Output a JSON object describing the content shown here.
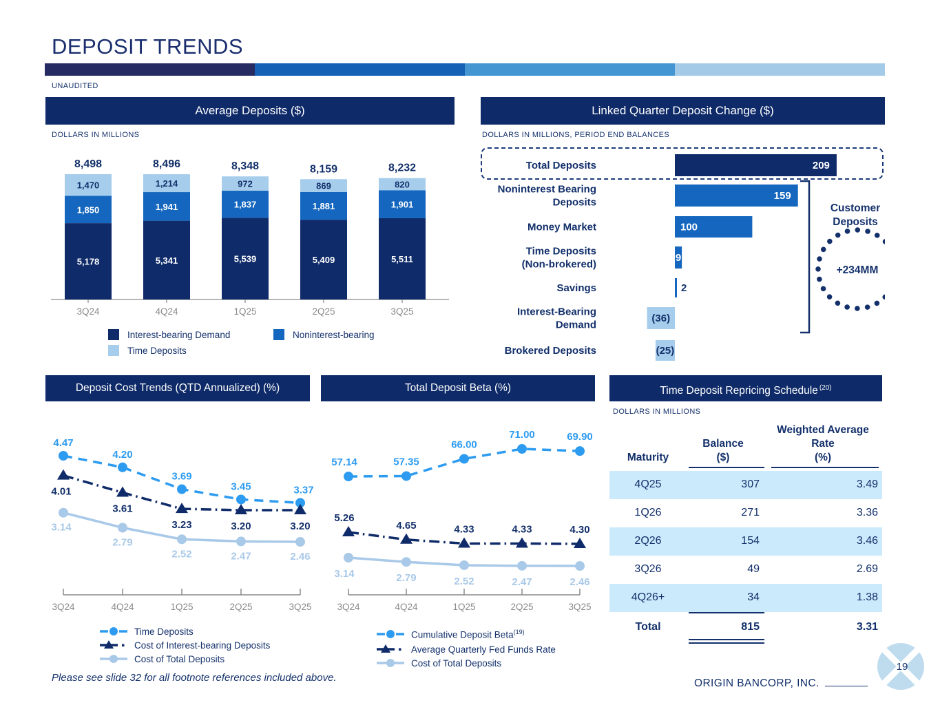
{
  "page": {
    "title": "DEPOSIT TRENDS",
    "unaudited": "UNAUDITED",
    "footnote": "Please see slide 32 for all footnote references included above.",
    "company": "ORIGIN BANCORP, INC.",
    "page_number": "19"
  },
  "colors": {
    "navy": "#0F2B69",
    "mid_blue": "#1566BE",
    "light_blue": "#A6CDEC",
    "bright_blue": "#2D9BF0",
    "pale_line": "#A9C9E8",
    "text_navy": "#13306B",
    "axis_gray": "#8A8A8A",
    "row_blue": "#CBEAFC",
    "logo_blue": "#BFDCEF",
    "gradient": [
      "#262C62",
      "#1461B5",
      "#4496D2",
      "#A3CBE8"
    ]
  },
  "avg_deposits": {
    "title": "Average Deposits ($)",
    "subtitle": "DOLLARS IN MILLIONS",
    "chart_data": {
      "type": "bar",
      "stacked": true,
      "categories": [
        "3Q24",
        "4Q24",
        "1Q25",
        "2Q25",
        "3Q25"
      ],
      "totals": [
        8498,
        8496,
        8348,
        8159,
        8232
      ],
      "total_labels": [
        "8,498",
        "8,496",
        "8,348",
        "8,159",
        "8,232"
      ],
      "series": [
        {
          "name": "Interest-bearing Demand",
          "color": "navy",
          "label_color": "white",
          "values": [
            5178,
            5341,
            5539,
            5409,
            5511
          ],
          "labels": [
            "5,178",
            "5,341",
            "5,539",
            "5,409",
            "5,511"
          ]
        },
        {
          "name": "Noninterest-bearing",
          "color": "mid_blue",
          "label_color": "white",
          "values": [
            1850,
            1941,
            1837,
            1881,
            1901
          ],
          "labels": [
            "1,850",
            "1,941",
            "1,837",
            "1,881",
            "1,901"
          ]
        },
        {
          "name": "Time Deposits",
          "color": "light_blue",
          "label_color": "navy",
          "values": [
            1470,
            1214,
            972,
            869,
            820
          ],
          "labels": [
            "1,470",
            "1,214",
            "972",
            "869",
            "820"
          ]
        }
      ],
      "legend": [
        {
          "label": "Interest-bearing Demand",
          "color": "navy"
        },
        {
          "label": "Noninterest-bearing",
          "color": "mid_blue"
        },
        {
          "label": "Time Deposits",
          "color": "light_blue"
        }
      ]
    }
  },
  "linked_quarter": {
    "title": "Linked Quarter Deposit Change ($)",
    "subtitle": "DOLLARS IN MILLIONS, PERIOD END BALANCES",
    "chart_data": {
      "type": "bar-horizontal",
      "rows": [
        {
          "label": [
            "Total Deposits"
          ],
          "value": 209,
          "value_label": "209",
          "color": "navy",
          "label_pos": "inside-right",
          "label_color": "white",
          "boxed": true
        },
        {
          "label": [
            "Noninterest Bearing",
            "Deposits"
          ],
          "value": 159,
          "value_label": "159",
          "color": "mid_blue",
          "label_pos": "inside-right",
          "label_color": "white"
        },
        {
          "label": [
            "Money Market"
          ],
          "value": 100,
          "value_label": "100",
          "color": "mid_blue",
          "label_pos": "inside-left",
          "label_color": "white"
        },
        {
          "label": [
            "Time Deposits",
            "(Non-brokered)"
          ],
          "value": 9,
          "value_label": "9",
          "color": "mid_blue",
          "label_pos": "center",
          "label_color": "white"
        },
        {
          "label": [
            "Savings"
          ],
          "value": 2,
          "value_label": "2",
          "color": "mid_blue",
          "label_pos": "outside-right",
          "label_color": "navy"
        },
        {
          "label": [
            "Interest-Bearing",
            "Demand"
          ],
          "value": -36,
          "value_label": "(36)",
          "color": "light_blue",
          "label_pos": "center",
          "label_color": "navy"
        },
        {
          "label": [
            "Brokered Deposits"
          ],
          "value": -25,
          "value_label": "(25)",
          "color": "light_blue",
          "label_pos": "center",
          "label_color": "navy"
        }
      ],
      "bracket_label": [
        "Customer",
        "Deposits"
      ],
      "circle_label": "+234MM"
    }
  },
  "cost_trends": {
    "title": "Deposit Cost Trends (QTD Annualized) (%)",
    "chart_data": {
      "type": "line",
      "x": [
        "3Q24",
        "4Q24",
        "1Q25",
        "2Q25",
        "3Q25"
      ],
      "series": [
        {
          "name": "Time Deposits",
          "values": [
            4.47,
            4.2,
            3.69,
            3.45,
            3.37
          ],
          "labels": [
            "4.47",
            "4.20",
            "3.69",
            "3.45",
            "3.37"
          ],
          "color": "bright_blue",
          "style": "dashed-circle"
        },
        {
          "name": "Cost of Interest-bearing Deposits",
          "values": [
            4.01,
            3.61,
            3.23,
            3.2,
            3.2
          ],
          "labels": [
            "4.01",
            "3.61",
            "3.23",
            "3.20",
            "3.20"
          ],
          "color": "navy",
          "style": "dashdot-triangle"
        },
        {
          "name": "Cost of Total Deposits",
          "values": [
            3.14,
            2.79,
            2.52,
            2.47,
            2.46
          ],
          "labels": [
            "3.14",
            "2.79",
            "2.52",
            "2.47",
            "2.46"
          ],
          "color": "pale_line",
          "style": "solid-circle"
        }
      ]
    },
    "legend": [
      {
        "label": "Time Deposits",
        "sup": "",
        "style": "dashed-circle",
        "color": "bright_blue"
      },
      {
        "label": "Cost of Interest-bearing Deposits",
        "sup": "",
        "style": "dashdot-triangle",
        "color": "navy"
      },
      {
        "label": "Cost of Total Deposits",
        "sup": "",
        "style": "solid-circle",
        "color": "pale_line"
      }
    ]
  },
  "deposit_beta": {
    "title": "Total Deposit Beta (%)",
    "chart_data": {
      "type": "line",
      "x": [
        "3Q24",
        "4Q24",
        "1Q25",
        "2Q25",
        "3Q25"
      ],
      "series": [
        {
          "name": "Cumulative Deposit Beta",
          "values": [
            57.14,
            57.35,
            66.0,
            71.0,
            69.9
          ],
          "labels": [
            "57.14",
            "57.35",
            "66.00",
            "71.00",
            "69.90"
          ],
          "color": "bright_blue",
          "style": "dashed-circle"
        },
        {
          "name": "Average Quarterly Fed Funds Rate",
          "values": [
            5.26,
            4.65,
            4.33,
            4.33,
            4.3
          ],
          "labels": [
            "5.26",
            "4.65",
            "4.33",
            "4.33",
            "4.30"
          ],
          "color": "navy",
          "style": "dashdot-triangle"
        },
        {
          "name": "Cost of Total Deposits",
          "values": [
            3.14,
            2.79,
            2.52,
            2.47,
            2.46
          ],
          "labels": [
            "3.14",
            "2.79",
            "2.52",
            "2.47",
            "2.46"
          ],
          "color": "pale_line",
          "style": "solid-circle"
        }
      ]
    },
    "legend": [
      {
        "label": "Cumulative Deposit Beta",
        "sup": "(19)",
        "style": "dashed-circle",
        "color": "bright_blue"
      },
      {
        "label": "Average Quarterly Fed Funds Rate",
        "sup": "",
        "style": "dashdot-triangle",
        "color": "navy"
      },
      {
        "label": "Cost of Total Deposits",
        "sup": "",
        "style": "solid-circle",
        "color": "pale_line"
      }
    ]
  },
  "repricing": {
    "title": "Time Deposit Repricing Schedule",
    "title_sup": "(20)",
    "subtitle": "DOLLARS IN MILLIONS",
    "chart_data": {
      "type": "table",
      "headers": {
        "col1": [
          "Maturity"
        ],
        "col2": [
          "Balance",
          "($)"
        ],
        "col3": [
          "Weighted Average",
          "Rate",
          "(%)"
        ]
      },
      "rows": [
        [
          "4Q25",
          "307",
          "3.49"
        ],
        [
          "1Q26",
          "271",
          "3.36"
        ],
        [
          "2Q26",
          "154",
          "3.46"
        ],
        [
          "3Q26",
          "49",
          "2.69"
        ],
        [
          "4Q26+",
          "34",
          "1.38"
        ]
      ],
      "total_row": [
        "Total",
        "815",
        "3.31"
      ]
    }
  }
}
